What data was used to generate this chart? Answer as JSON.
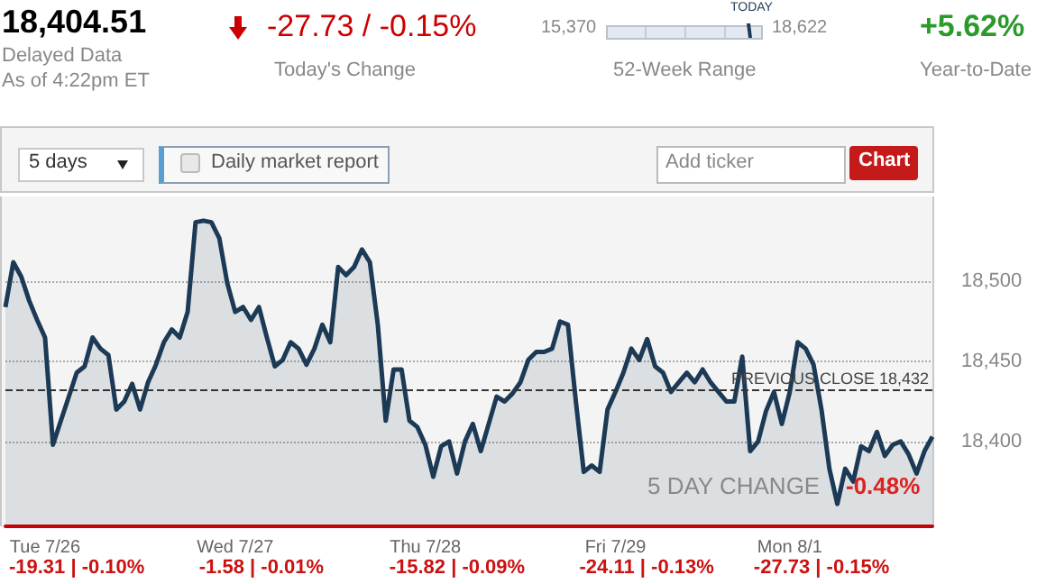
{
  "chart_data": {
    "type": "area",
    "categories": [
      null,
      null,
      null,
      null,
      null,
      "Tue 7/26",
      null,
      null,
      null,
      null,
      null,
      null,
      null,
      null,
      null,
      null,
      null,
      null,
      null,
      null,
      null,
      null,
      null,
      null,
      null,
      null,
      null,
      null,
      null,
      "Wed 7/27",
      null,
      null,
      null,
      null,
      null,
      null,
      null,
      null,
      null,
      null,
      null,
      null,
      null,
      null,
      null,
      null,
      null,
      null,
      null,
      null,
      null,
      null,
      null,
      "Thu 7/28",
      null,
      null,
      null,
      null,
      null,
      null,
      null,
      null,
      null,
      null,
      null,
      null,
      null,
      null,
      null,
      null,
      null,
      null,
      null,
      null,
      null,
      null,
      null,
      "Fri 7/29",
      null,
      null,
      null,
      null,
      null,
      null,
      null,
      null,
      null,
      null,
      null,
      null,
      null,
      null,
      null,
      null,
      null,
      null,
      null,
      null,
      null,
      "Mon 8/1",
      null,
      null,
      null,
      null,
      null,
      null,
      null,
      null,
      null,
      null,
      null,
      null,
      null,
      null,
      null,
      null,
      null,
      null
    ],
    "series": [
      {
        "color": "#1c3a55",
        "values": [
          18484,
          18512,
          18503,
          18488,
          18476,
          18465,
          18398,
          18413,
          18428,
          18443,
          18447,
          18465,
          18458,
          18454,
          18420,
          18425,
          18436,
          18420,
          18437,
          18448,
          18462,
          18470,
          18465,
          18481,
          18537,
          18538,
          18537,
          18527,
          18499,
          18481,
          18484,
          18476,
          18484,
          18465,
          18447,
          18451,
          18462,
          18458,
          18448,
          18458,
          18473,
          18462,
          18509,
          18504,
          18509,
          18520,
          18512,
          18473,
          18413,
          18445,
          18445,
          18413,
          18409,
          18398,
          18378,
          18397,
          18400,
          18380,
          18400,
          18411,
          18394,
          18411,
          18428,
          18425,
          18430,
          18437,
          18451,
          18456,
          18456,
          18458,
          18475,
          18473,
          18425,
          18381,
          18385,
          18381,
          18420,
          18431,
          18443,
          18458,
          18451,
          18464,
          18447,
          18443,
          18431,
          18437,
          18443,
          18437,
          18445,
          18437,
          18431,
          18425,
          18425,
          18453,
          18394,
          18400,
          18419,
          18431,
          18411,
          18431,
          18462,
          18458,
          18448,
          18420,
          18383,
          18361,
          18383,
          18375,
          18397,
          18394,
          18406,
          18391,
          18398,
          18400,
          18392,
          18380,
          18394,
          18403
        ]
      }
    ],
    "ylim": [
      18347,
      18552
    ],
    "yticks": [
      {
        "value": 18400,
        "label": "18,400"
      },
      {
        "value": 18450,
        "label": "18,450"
      },
      {
        "value": 18500,
        "label": "18,500"
      }
    ],
    "grid": "y",
    "ref_lines": [
      {
        "axis": "y",
        "value": 18432,
        "label": "PREVIOUS CLOSE 18,432",
        "line_style": "dashed",
        "color": "#333333"
      }
    ],
    "annotations": [
      "18,404.51",
      "Delayed Data",
      "As of 4:22pm ET",
      "-27.73 / -0.15%",
      "Today's Change",
      "15,370",
      "18,622",
      "TODAY",
      "52-Week Range",
      "+5.62%",
      "Year-to-Date",
      "5 days",
      "Daily market report",
      "Add ticker",
      "Chart",
      "5 DAY CHANGE",
      "-0.48%",
      "-19.31 | -0.10%",
      "-1.58 | -0.01%",
      "-15.82 | -0.09%",
      "-24.11 | -0.13%",
      "-27.73 | -0.15%"
    ]
  }
}
